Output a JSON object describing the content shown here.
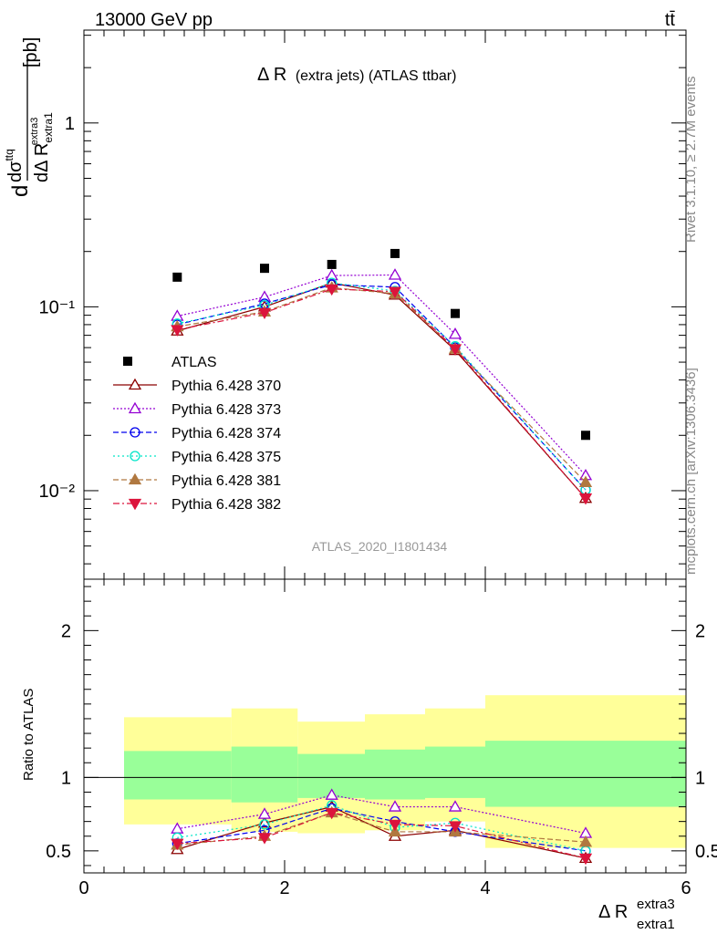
{
  "header": {
    "energy_label": "13000 GeV pp",
    "process_label": "tt̄"
  },
  "side_labels": {
    "rivet": "Rivet 3.1.10, ≥ 2.7M events",
    "mcplots": "mcplots.cern.ch [arXiv:1306.3436]"
  },
  "main_title": {
    "prefix": "Δ R",
    "suffix": "(extra jets) (ATLAS ttbar)"
  },
  "analysis_id": "ATLAS_2020_I1801434",
  "y_axis_label": {
    "d": "d",
    "dsigma": "dσ",
    "dsigma_sup": "ttq",
    "dDeltaR": "dΔ R",
    "dR_sub": "extra1",
    "dR_sup": "extra3",
    "unit": "[pb]"
  },
  "ratio_label": "Ratio to ATLAS",
  "x_axis_label": {
    "main": "Δ R",
    "sup": "extra3",
    "sub": "extra1"
  },
  "colors": {
    "data": "#000000",
    "band_inner": "#99ff99",
    "band_outer": "#ffff99",
    "s370": "#8b0000",
    "s373": "#9400d3",
    "s374": "#0000ee",
    "s375": "#00e5c8",
    "s381": "#b07840",
    "s382": "#dc143c"
  },
  "chart_data": {
    "type": "line",
    "x_label": "Δ R extra1 extra3",
    "y_label": "dσ/dΔR [pb]",
    "y_scale": "log",
    "xlim": [
      0,
      6
    ],
    "ylim": [
      0.0033,
      3.2
    ],
    "ratio_ylim": [
      0.35,
      2.35
    ],
    "x_ticks": [
      0,
      2,
      4,
      6
    ],
    "y_tick_labels": [
      "10⁻²",
      "10⁻¹",
      "1"
    ],
    "y_tick_values": [
      0.01,
      0.1,
      1
    ],
    "ratio_tick_values": [
      0.5,
      1,
      2
    ],
    "ratio_tick_labels": [
      "0.5",
      "1",
      "2"
    ],
    "x": [
      0.93,
      1.8,
      2.47,
      3.1,
      3.7,
      5.0
    ],
    "bins": [
      [
        0.4,
        1.47
      ],
      [
        1.47,
        2.13
      ],
      [
        2.13,
        2.8
      ],
      [
        2.8,
        3.4
      ],
      [
        3.4,
        4.0
      ],
      [
        4.0,
        6.0
      ]
    ],
    "band_inner": [
      [
        0.85,
        1.18
      ],
      [
        0.83,
        1.21
      ],
      [
        0.86,
        1.16
      ],
      [
        0.85,
        1.19
      ],
      [
        0.86,
        1.21
      ],
      [
        0.8,
        1.25
      ]
    ],
    "band_outer": [
      [
        0.68,
        1.41
      ],
      [
        0.63,
        1.47
      ],
      [
        0.62,
        1.38
      ],
      [
        0.64,
        1.43
      ],
      [
        0.7,
        1.47
      ],
      [
        0.52,
        1.56
      ]
    ],
    "data": {
      "name": "ATLAS",
      "values": [
        0.145,
        0.162,
        0.17,
        0.195,
        0.092,
        0.02
      ]
    },
    "series": [
      {
        "name": "Pythia 6.428 370",
        "key": "s370",
        "marker": "tri-open",
        "dash": "",
        "values": [
          0.074,
          0.1,
          0.135,
          0.116,
          0.058,
          0.0091
        ],
        "ratio": [
          0.51,
          0.69,
          0.8,
          0.6,
          0.64,
          0.45
        ]
      },
      {
        "name": "Pythia 6.428 373",
        "key": "s373",
        "marker": "tri-open",
        "dash": "2,2",
        "values": [
          0.089,
          0.113,
          0.148,
          0.149,
          0.071,
          0.0121
        ],
        "ratio": [
          0.65,
          0.75,
          0.88,
          0.8,
          0.8,
          0.62
        ]
      },
      {
        "name": "Pythia 6.428 374",
        "key": "s374",
        "marker": "circle-open",
        "dash": "6,3",
        "values": [
          0.08,
          0.104,
          0.132,
          0.128,
          0.06,
          0.0101
        ],
        "ratio": [
          0.55,
          0.64,
          0.79,
          0.7,
          0.63,
          0.5
        ]
      },
      {
        "name": "Pythia 6.428 375",
        "key": "s375",
        "marker": "circle-open",
        "dash": "2,3",
        "values": [
          0.081,
          0.102,
          0.135,
          0.122,
          0.061,
          0.0101
        ],
        "ratio": [
          0.59,
          0.68,
          0.81,
          0.66,
          0.69,
          0.5
        ]
      },
      {
        "name": "Pythia 6.428 381",
        "key": "s381",
        "marker": "tri-filled",
        "dash": "6,3",
        "values": [
          0.078,
          0.094,
          0.127,
          0.118,
          0.059,
          0.0111
        ],
        "ratio": [
          0.54,
          0.6,
          0.76,
          0.63,
          0.63,
          0.56
        ]
      },
      {
        "name": "Pythia 6.428 382",
        "key": "s382",
        "marker": "tri-down-filled",
        "dash": "7,3,2,3",
        "values": [
          0.075,
          0.093,
          0.125,
          0.121,
          0.059,
          0.0091
        ],
        "ratio": [
          0.55,
          0.59,
          0.76,
          0.68,
          0.67,
          0.45
        ]
      }
    ]
  }
}
